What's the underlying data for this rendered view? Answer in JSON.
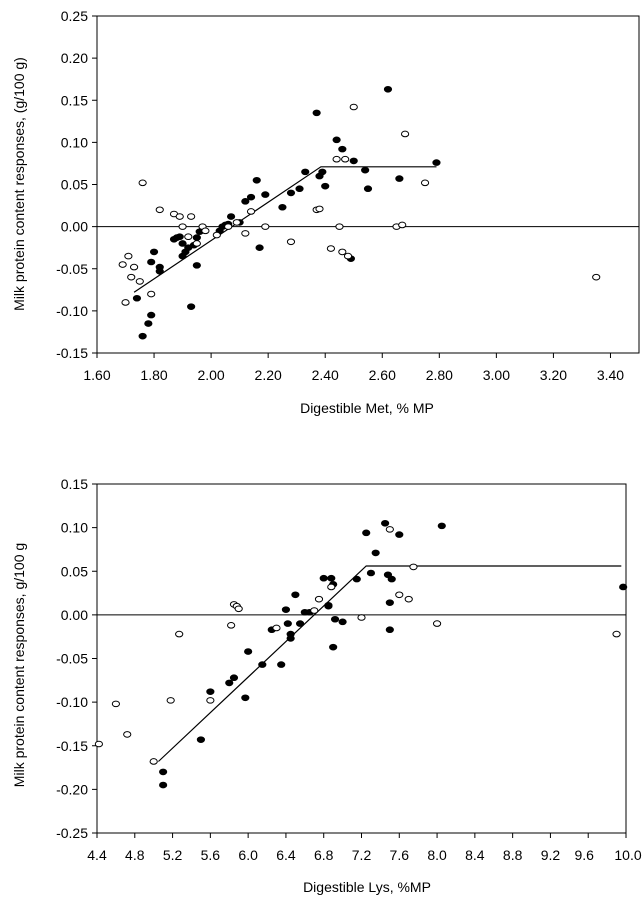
{
  "chart_data": [
    {
      "type": "scatter",
      "title": "",
      "xlabel": "Digestible Met, % MP",
      "ylabel": "Milk protein content responses, (g/100 g)",
      "xlim": [
        1.6,
        3.5
      ],
      "ylim": [
        -0.15,
        0.25
      ],
      "xticks": [
        "1.60",
        "1.80",
        "2.00",
        "2.20",
        "2.40",
        "2.60",
        "2.80",
        "3.00",
        "3.20",
        "3.40"
      ],
      "yticks": [
        "0.25",
        "0.20",
        "0.15",
        "0.10",
        "0.05",
        "0.00",
        "-0.05",
        "-0.10",
        "-0.15"
      ],
      "grid": false,
      "legend": "none",
      "zero_line": true,
      "series": [
        {
          "marker": "filled",
          "color": "#000000",
          "points": [
            [
              1.74,
              -0.085
            ],
            [
              1.76,
              -0.13
            ],
            [
              1.78,
              -0.115
            ],
            [
              1.79,
              -0.105
            ],
            [
              1.79,
              -0.042
            ],
            [
              1.8,
              -0.03
            ],
            [
              1.82,
              -0.048
            ],
            [
              1.82,
              -0.053
            ],
            [
              1.87,
              -0.015
            ],
            [
              1.88,
              -0.013
            ],
            [
              1.89,
              -0.012
            ],
            [
              1.9,
              -0.02
            ],
            [
              1.9,
              -0.035
            ],
            [
              1.91,
              -0.03
            ],
            [
              1.92,
              -0.025
            ],
            [
              1.93,
              -0.095
            ],
            [
              1.94,
              -0.022
            ],
            [
              1.95,
              -0.046
            ],
            [
              1.95,
              -0.013
            ],
            [
              1.96,
              -0.006
            ],
            [
              2.03,
              -0.005
            ],
            [
              2.04,
              0.0
            ],
            [
              2.05,
              0.002
            ],
            [
              2.06,
              0.003
            ],
            [
              2.07,
              0.012
            ],
            [
              2.1,
              0.005
            ],
            [
              2.12,
              0.03
            ],
            [
              2.14,
              0.035
            ],
            [
              2.16,
              0.055
            ],
            [
              2.17,
              -0.025
            ],
            [
              2.19,
              0.038
            ],
            [
              2.25,
              0.023
            ],
            [
              2.28,
              0.04
            ],
            [
              2.31,
              0.045
            ],
            [
              2.33,
              0.065
            ],
            [
              2.37,
              0.135
            ],
            [
              2.38,
              0.06
            ],
            [
              2.39,
              0.065
            ],
            [
              2.4,
              0.048
            ],
            [
              2.44,
              0.103
            ],
            [
              2.46,
              0.092
            ],
            [
              2.49,
              -0.038
            ],
            [
              2.5,
              0.078
            ],
            [
              2.54,
              0.067
            ],
            [
              2.55,
              0.045
            ],
            [
              2.62,
              0.163
            ],
            [
              2.66,
              0.057
            ],
            [
              2.79,
              0.076
            ]
          ]
        },
        {
          "marker": "open",
          "color": "#000000",
          "points": [
            [
              1.69,
              -0.045
            ],
            [
              1.7,
              -0.09
            ],
            [
              1.71,
              -0.035
            ],
            [
              1.72,
              -0.06
            ],
            [
              1.73,
              -0.048
            ],
            [
              1.75,
              -0.065
            ],
            [
              1.76,
              0.052
            ],
            [
              1.79,
              -0.08
            ],
            [
              1.82,
              0.02
            ],
            [
              1.87,
              0.015
            ],
            [
              1.89,
              0.012
            ],
            [
              1.9,
              0.0
            ],
            [
              1.92,
              -0.012
            ],
            [
              1.93,
              0.012
            ],
            [
              1.95,
              -0.02
            ],
            [
              1.97,
              0.0
            ],
            [
              1.98,
              -0.005
            ],
            [
              2.02,
              -0.01
            ],
            [
              2.06,
              0.0
            ],
            [
              2.09,
              0.005
            ],
            [
              2.12,
              -0.008
            ],
            [
              2.14,
              0.018
            ],
            [
              2.19,
              0.0
            ],
            [
              2.28,
              -0.018
            ],
            [
              2.37,
              0.02
            ],
            [
              2.38,
              0.021
            ],
            [
              2.42,
              -0.026
            ],
            [
              2.44,
              0.08
            ],
            [
              2.45,
              0.0
            ],
            [
              2.46,
              -0.03
            ],
            [
              2.47,
              0.08
            ],
            [
              2.48,
              -0.035
            ],
            [
              2.5,
              0.142
            ],
            [
              2.65,
              0.0
            ],
            [
              2.67,
              0.002
            ],
            [
              2.68,
              0.11
            ],
            [
              2.75,
              0.052
            ],
            [
              3.35,
              -0.06
            ]
          ]
        }
      ],
      "fit_line": [
        [
          1.73,
          -0.078
        ],
        [
          2.385,
          0.071
        ],
        [
          2.79,
          0.071
        ]
      ]
    },
    {
      "type": "scatter",
      "title": "",
      "xlabel": "Digestible Lys, %MP",
      "ylabel": "Milk protein content responses, g/100 g",
      "xlim": [
        4.4,
        10.0
      ],
      "ylim": [
        -0.25,
        0.15
      ],
      "xticks": [
        "4.4",
        "4.8",
        "5.2",
        "5.6",
        "6.0",
        "6.4",
        "6.8",
        "7.2",
        "7.6",
        "8.0",
        "8.4",
        "8.8",
        "9.2",
        "9.6",
        "10.0"
      ],
      "yticks": [
        "0.15",
        "0.10",
        "0.05",
        "0.00",
        "-0.05",
        "-0.10",
        "-0.15",
        "-0.20",
        "-0.25"
      ],
      "grid": false,
      "legend": "none",
      "zero_line": true,
      "series": [
        {
          "marker": "filled",
          "color": "#000000",
          "points": [
            [
              5.1,
              -0.18
            ],
            [
              5.1,
              -0.195
            ],
            [
              5.5,
              -0.143
            ],
            [
              5.6,
              -0.088
            ],
            [
              5.8,
              -0.078
            ],
            [
              5.85,
              -0.072
            ],
            [
              5.97,
              -0.095
            ],
            [
              6.0,
              -0.042
            ],
            [
              6.15,
              -0.057
            ],
            [
              6.25,
              -0.017
            ],
            [
              6.35,
              -0.057
            ],
            [
              6.4,
              0.006
            ],
            [
              6.42,
              -0.01
            ],
            [
              6.45,
              -0.022
            ],
            [
              6.45,
              -0.027
            ],
            [
              6.5,
              0.023
            ],
            [
              6.55,
              -0.01
            ],
            [
              6.6,
              0.003
            ],
            [
              6.65,
              0.003
            ],
            [
              6.8,
              0.042
            ],
            [
              6.85,
              0.011
            ],
            [
              6.85,
              0.01
            ],
            [
              6.88,
              0.042
            ],
            [
              6.9,
              0.035
            ],
            [
              6.9,
              -0.037
            ],
            [
              6.92,
              -0.005
            ],
            [
              7.0,
              -0.008
            ],
            [
              7.15,
              0.041
            ],
            [
              7.25,
              0.094
            ],
            [
              7.35,
              0.071
            ],
            [
              7.3,
              0.048
            ],
            [
              7.45,
              0.105
            ],
            [
              7.5,
              0.014
            ],
            [
              7.5,
              -0.017
            ],
            [
              7.48,
              0.046
            ],
            [
              7.52,
              0.041
            ],
            [
              7.6,
              0.092
            ],
            [
              8.05,
              0.102
            ],
            [
              9.97,
              0.032
            ]
          ]
        },
        {
          "marker": "open",
          "color": "#000000",
          "points": [
            [
              4.42,
              -0.148
            ],
            [
              4.6,
              -0.102
            ],
            [
              4.72,
              -0.137
            ],
            [
              5.0,
              -0.168
            ],
            [
              5.18,
              -0.098
            ],
            [
              5.27,
              -0.022
            ],
            [
              5.6,
              -0.098
            ],
            [
              5.82,
              -0.012
            ],
            [
              5.85,
              0.012
            ],
            [
              5.88,
              0.01
            ],
            [
              5.9,
              0.007
            ],
            [
              6.3,
              -0.015
            ],
            [
              6.7,
              0.005
            ],
            [
              6.75,
              0.018
            ],
            [
              6.88,
              0.032
            ],
            [
              7.2,
              -0.003
            ],
            [
              7.5,
              0.098
            ],
            [
              7.6,
              0.023
            ],
            [
              7.7,
              0.018
            ],
            [
              7.75,
              0.055
            ],
            [
              8.0,
              -0.01
            ],
            [
              9.9,
              -0.022
            ]
          ]
        }
      ],
      "fit_line": [
        [
          5.05,
          -0.168
        ],
        [
          7.25,
          0.056
        ],
        [
          9.95,
          0.056
        ]
      ]
    }
  ]
}
